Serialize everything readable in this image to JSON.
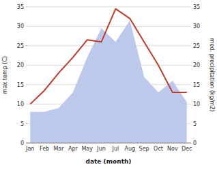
{
  "chart_data": {
    "type": "line",
    "xlabel": "date (month)",
    "ylabel": "max temp (C)",
    "y2label": "med. precipitation (kg/m2)",
    "categories": [
      "Jan",
      "Feb",
      "Mar",
      "Apr",
      "May",
      "Jun",
      "Jul",
      "Aug",
      "Sep",
      "Oct",
      "Nov",
      "Dec"
    ],
    "series": [
      {
        "type": "area",
        "axis": "y2",
        "color": "#bdc8ed",
        "values": [
          8,
          8,
          9,
          13,
          22,
          29.5,
          26,
          31.5,
          17,
          13,
          16,
          10.5
        ]
      },
      {
        "type": "line",
        "color": "#c0392b",
        "values": [
          10,
          13.5,
          18,
          22,
          26.5,
          26,
          34.5,
          32,
          26,
          20,
          13,
          13
        ]
      }
    ],
    "ylim": [
      0,
      35
    ],
    "yticks": [
      0,
      5,
      10,
      15,
      20,
      25,
      30,
      35
    ],
    "y2lim": [
      0,
      35
    ],
    "y2ticks": [
      0,
      5,
      10,
      15,
      20,
      25,
      30,
      35
    ],
    "grid": true
  }
}
